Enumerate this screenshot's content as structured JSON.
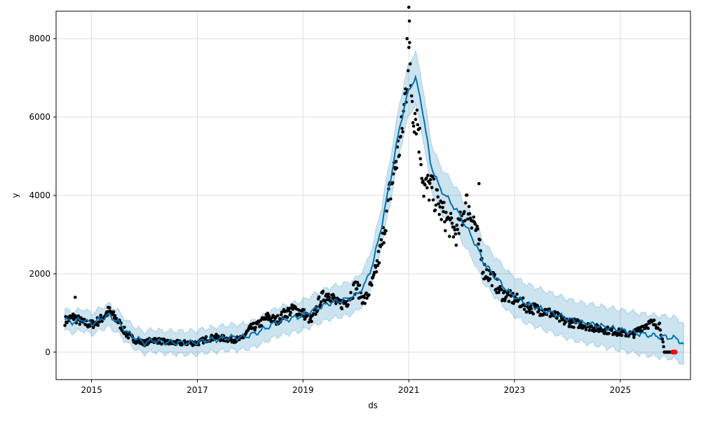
{
  "chart_data": {
    "type": "line",
    "xlabel": "ds",
    "ylabel": "y",
    "x_range": [
      "2014-05-01",
      "2026-05-01"
    ],
    "ylim": [
      -700,
      8700
    ],
    "x_ticks": [
      "2015",
      "2017",
      "2019",
      "2021",
      "2023",
      "2025"
    ],
    "y_ticks": [
      0,
      2000,
      4000,
      6000,
      8000
    ],
    "grid": true,
    "colors": {
      "forecast_line": "#0072B2",
      "uncertainty_band": "#0072B2",
      "observed_points": "#000000",
      "highlight_points": "#ff0000",
      "grid": "#dddddd"
    },
    "series": [
      {
        "kind": "forecast",
        "x": [
          "2014-07-01",
          "2014-09-01",
          "2014-11-01",
          "2015-01-01",
          "2015-03-01",
          "2015-05-01",
          "2015-07-01",
          "2015-09-01",
          "2015-11-01",
          "2016-01-01",
          "2016-03-01",
          "2016-05-01",
          "2016-07-01",
          "2016-09-01",
          "2016-11-01",
          "2017-01-01",
          "2017-03-01",
          "2017-05-01",
          "2017-07-01",
          "2017-09-01",
          "2017-11-01",
          "2018-01-01",
          "2018-03-01",
          "2018-05-01",
          "2018-07-01",
          "2018-09-01",
          "2018-11-01",
          "2019-01-01",
          "2019-03-01",
          "2019-05-01",
          "2019-07-01",
          "2019-09-01",
          "2019-11-01",
          "2020-01-01",
          "2020-03-01",
          "2020-05-01",
          "2020-07-01",
          "2020-09-01",
          "2020-11-01",
          "2021-01-01",
          "2021-02-15",
          "2021-04-01",
          "2021-06-01",
          "2021-08-01",
          "2021-10-01",
          "2021-12-01",
          "2022-02-01",
          "2022-04-01",
          "2022-06-01",
          "2022-08-01",
          "2022-10-01",
          "2022-12-01",
          "2023-02-01",
          "2023-04-01",
          "2023-06-01",
          "2023-08-01",
          "2023-10-01",
          "2023-12-01",
          "2024-02-01",
          "2024-04-01",
          "2024-06-01",
          "2024-08-01",
          "2024-10-01",
          "2024-12-01",
          "2025-02-01",
          "2025-04-01",
          "2025-06-01",
          "2025-08-01",
          "2025-10-01",
          "2025-12-01",
          "2026-02-01",
          "2026-03-15"
        ],
        "y": [
          820,
          760,
          840,
          720,
          840,
          940,
          780,
          520,
          360,
          240,
          300,
          260,
          250,
          240,
          240,
          250,
          300,
          320,
          360,
          380,
          380,
          430,
          520,
          640,
          760,
          820,
          880,
          940,
          1050,
          1150,
          1250,
          1300,
          1350,
          1450,
          1700,
          2300,
          3300,
          4500,
          5800,
          6700,
          7000,
          6300,
          4800,
          4200,
          3900,
          3600,
          3200,
          2800,
          2300,
          2000,
          1750,
          1500,
          1350,
          1230,
          1150,
          1060,
          980,
          900,
          820,
          760,
          720,
          680,
          630,
          590,
          540,
          500,
          460,
          430,
          400,
          380,
          340,
          180
        ]
      },
      {
        "kind": "observed",
        "x": [
          "2014-07-01",
          "2014-09-01",
          "2014-11-01",
          "2015-01-01",
          "2015-03-01",
          "2015-05-01",
          "2015-07-01",
          "2015-09-01",
          "2015-11-01",
          "2016-01-01",
          "2016-03-01",
          "2016-05-01",
          "2016-07-01",
          "2016-09-01",
          "2016-11-01",
          "2017-01-01",
          "2017-03-01",
          "2017-05-01",
          "2017-07-01",
          "2017-09-01",
          "2017-11-01",
          "2018-01-01",
          "2018-03-01",
          "2018-05-01",
          "2018-07-01",
          "2018-09-01",
          "2018-11-01",
          "2019-01-01",
          "2019-03-01",
          "2019-05-01",
          "2019-07-01",
          "2019-09-01",
          "2019-11-01",
          "2020-01-01",
          "2020-03-01",
          "2020-05-01",
          "2020-07-01",
          "2020-08-15",
          "2020-10-01",
          "2020-11-15",
          "2021-01-01",
          "2021-02-01",
          "2021-03-01",
          "2021-04-15",
          "2021-06-01",
          "2021-08-01",
          "2021-10-01",
          "2021-12-01",
          "2022-02-01",
          "2022-04-01",
          "2022-06-01",
          "2022-08-01",
          "2022-10-01",
          "2022-12-01",
          "2023-02-01",
          "2023-04-01",
          "2023-06-01",
          "2023-08-01",
          "2023-10-01",
          "2023-12-01",
          "2024-02-01",
          "2024-04-01",
          "2024-06-01",
          "2024-08-01",
          "2024-10-01",
          "2024-12-01",
          "2025-02-01",
          "2025-04-01",
          "2025-06-01",
          "2025-08-01",
          "2025-10-01",
          "2025-11-01",
          "2025-12-01",
          "2026-01-01"
        ],
        "y": [
          800,
          900,
          750,
          700,
          820,
          1050,
          800,
          450,
          300,
          230,
          320,
          270,
          240,
          230,
          240,
          230,
          330,
          380,
          350,
          320,
          330,
          600,
          700,
          900,
          800,
          1000,
          1100,
          1000,
          800,
          1350,
          1500,
          1200,
          1300,
          1700,
          1300,
          1800,
          2800,
          3900,
          4800,
          5600,
          7600,
          6200,
          6000,
          4200,
          4200,
          3700,
          3300,
          3000,
          3800,
          3300,
          2100,
          1900,
          1500,
          1400,
          1300,
          1150,
          1100,
          1050,
          950,
          800,
          750,
          720,
          650,
          600,
          560,
          520,
          480,
          450,
          650,
          740,
          700,
          0,
          0,
          0
        ]
      },
      {
        "kind": "highlight",
        "x": [
          "2026-01-01",
          "2026-01-15"
        ],
        "y": [
          0,
          0
        ]
      }
    ]
  }
}
